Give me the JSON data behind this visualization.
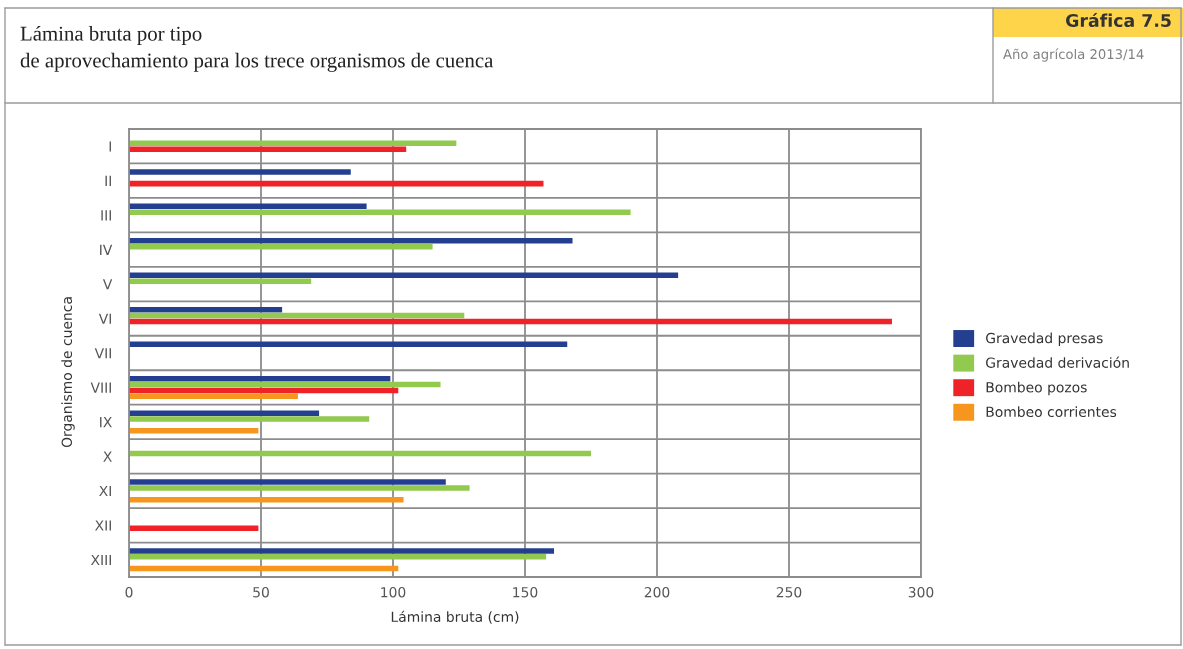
{
  "chart_data": {
    "type": "bar",
    "orientation": "horizontal",
    "title": "Lámina bruta por tipo\nde aprovechamiento para los trece organismos de cuenca",
    "subtitle": "Año agrícola 2013/14",
    "annotations": [
      "Gráfica 7.5"
    ],
    "xlabel": "Lámina bruta (cm)",
    "ylabel": "Organismo de cuenca",
    "categories": [
      "I",
      "II",
      "III",
      "IV",
      "V",
      "VI",
      "VII",
      "VIII",
      "IX",
      "X",
      "XI",
      "XII",
      "XIII"
    ],
    "series": [
      {
        "name": "Gravedad presas",
        "color": "#243f8f",
        "values": [
          null,
          84,
          90,
          168,
          208,
          58,
          166,
          99,
          72,
          null,
          120,
          null,
          161
        ]
      },
      {
        "name": "Gravedad derivación",
        "color": "#92c94f",
        "values": [
          124,
          null,
          190,
          115,
          69,
          127,
          null,
          118,
          91,
          175,
          129,
          null,
          158
        ]
      },
      {
        "name": "Bombeo pozos",
        "color": "#ee2227",
        "values": [
          105,
          157,
          null,
          null,
          null,
          289,
          null,
          102,
          null,
          null,
          null,
          49,
          null
        ]
      },
      {
        "name": "Bombeo corrientes",
        "color": "#f7961e",
        "values": [
          null,
          null,
          null,
          null,
          null,
          null,
          null,
          64,
          49,
          null,
          104,
          null,
          102
        ]
      }
    ],
    "xlim": [
      0,
      300
    ],
    "xticks": [
      0,
      50,
      100,
      150,
      200,
      250,
      300
    ],
    "grid": true,
    "legend": "right"
  }
}
